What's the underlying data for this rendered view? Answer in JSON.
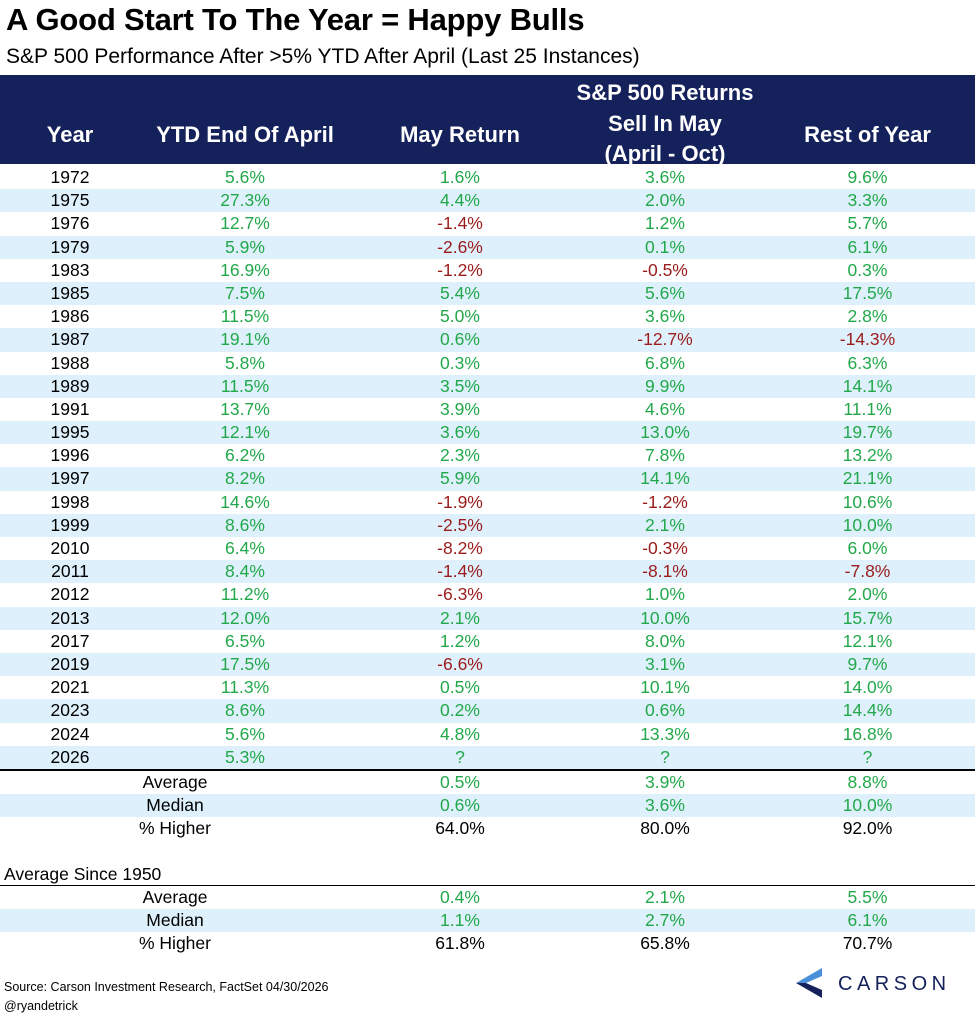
{
  "title": "A Good Start To The Year = Happy Bulls",
  "subtitle": "S&P 500 Performance After >5% YTD After April (Last 25 Instances)",
  "header": {
    "year": "Year",
    "ytd": "YTD End Of April",
    "may": "May Return",
    "sell_line1": "S&P 500 Returns",
    "sell_line2": "Sell In May",
    "sell_line3": "(April - Oct)",
    "rest": "Rest of Year"
  },
  "rows": [
    {
      "year": "1972",
      "ytd": "5.6%",
      "may": "1.6%",
      "sell": "3.6%",
      "rest": "9.6%"
    },
    {
      "year": "1975",
      "ytd": "27.3%",
      "may": "4.4%",
      "sell": "2.0%",
      "rest": "3.3%"
    },
    {
      "year": "1976",
      "ytd": "12.7%",
      "may": "-1.4%",
      "sell": "1.2%",
      "rest": "5.7%"
    },
    {
      "year": "1979",
      "ytd": "5.9%",
      "may": "-2.6%",
      "sell": "0.1%",
      "rest": "6.1%"
    },
    {
      "year": "1983",
      "ytd": "16.9%",
      "may": "-1.2%",
      "sell": "-0.5%",
      "rest": "0.3%"
    },
    {
      "year": "1985",
      "ytd": "7.5%",
      "may": "5.4%",
      "sell": "5.6%",
      "rest": "17.5%"
    },
    {
      "year": "1986",
      "ytd": "11.5%",
      "may": "5.0%",
      "sell": "3.6%",
      "rest": "2.8%"
    },
    {
      "year": "1987",
      "ytd": "19.1%",
      "may": "0.6%",
      "sell": "-12.7%",
      "rest": "-14.3%"
    },
    {
      "year": "1988",
      "ytd": "5.8%",
      "may": "0.3%",
      "sell": "6.8%",
      "rest": "6.3%"
    },
    {
      "year": "1989",
      "ytd": "11.5%",
      "may": "3.5%",
      "sell": "9.9%",
      "rest": "14.1%"
    },
    {
      "year": "1991",
      "ytd": "13.7%",
      "may": "3.9%",
      "sell": "4.6%",
      "rest": "11.1%"
    },
    {
      "year": "1995",
      "ytd": "12.1%",
      "may": "3.6%",
      "sell": "13.0%",
      "rest": "19.7%"
    },
    {
      "year": "1996",
      "ytd": "6.2%",
      "may": "2.3%",
      "sell": "7.8%",
      "rest": "13.2%"
    },
    {
      "year": "1997",
      "ytd": "8.2%",
      "may": "5.9%",
      "sell": "14.1%",
      "rest": "21.1%"
    },
    {
      "year": "1998",
      "ytd": "14.6%",
      "may": "-1.9%",
      "sell": "-1.2%",
      "rest": "10.6%"
    },
    {
      "year": "1999",
      "ytd": "8.6%",
      "may": "-2.5%",
      "sell": "2.1%",
      "rest": "10.0%"
    },
    {
      "year": "2010",
      "ytd": "6.4%",
      "may": "-8.2%",
      "sell": "-0.3%",
      "rest": "6.0%"
    },
    {
      "year": "2011",
      "ytd": "8.4%",
      "may": "-1.4%",
      "sell": "-8.1%",
      "rest": "-7.8%"
    },
    {
      "year": "2012",
      "ytd": "11.2%",
      "may": "-6.3%",
      "sell": "1.0%",
      "rest": "2.0%"
    },
    {
      "year": "2013",
      "ytd": "12.0%",
      "may": "2.1%",
      "sell": "10.0%",
      "rest": "15.7%"
    },
    {
      "year": "2017",
      "ytd": "6.5%",
      "may": "1.2%",
      "sell": "8.0%",
      "rest": "12.1%"
    },
    {
      "year": "2019",
      "ytd": "17.5%",
      "may": "-6.6%",
      "sell": "3.1%",
      "rest": "9.7%"
    },
    {
      "year": "2021",
      "ytd": "11.3%",
      "may": "0.5%",
      "sell": "10.1%",
      "rest": "14.0%"
    },
    {
      "year": "2023",
      "ytd": "8.6%",
      "may": "0.2%",
      "sell": "0.6%",
      "rest": "14.4%"
    },
    {
      "year": "2024",
      "ytd": "5.6%",
      "may": "4.8%",
      "sell": "13.3%",
      "rest": "16.8%"
    },
    {
      "year": "2026",
      "ytd": "5.3%",
      "may": "?",
      "sell": "?",
      "rest": "?"
    }
  ],
  "summary": [
    {
      "label": "Average",
      "may": "0.5%",
      "sell": "3.9%",
      "rest": "8.8%"
    },
    {
      "label": "Median",
      "may": "0.6%",
      "sell": "3.6%",
      "rest": "10.0%"
    },
    {
      "label": "% Higher",
      "may": "64.0%",
      "sell": "80.0%",
      "rest": "92.0%"
    }
  ],
  "since_label": "Average Since 1950",
  "since": [
    {
      "label": "Average",
      "may": "0.4%",
      "sell": "2.1%",
      "rest": "5.5%"
    },
    {
      "label": "Median",
      "may": "1.1%",
      "sell": "2.7%",
      "rest": "6.1%"
    },
    {
      "label": "% Higher",
      "may": "61.8%",
      "sell": "65.8%",
      "rest": "70.7%"
    }
  ],
  "source": "Source: Carson Investment Research, FactSet 04/30/2026",
  "handle": "@ryandetrick",
  "logo_text": "CARSON",
  "colors": {
    "header_bg": "#14215a",
    "positive": "#22a84a",
    "negative": "#9b1b1b",
    "stripe": "#ddf0fb"
  }
}
